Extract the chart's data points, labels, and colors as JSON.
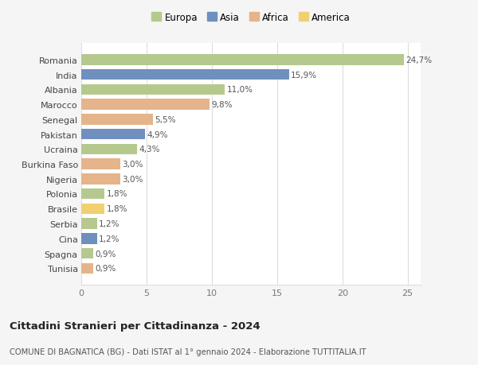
{
  "countries": [
    "Romania",
    "India",
    "Albania",
    "Marocco",
    "Senegal",
    "Pakistan",
    "Ucraina",
    "Burkina Faso",
    "Nigeria",
    "Polonia",
    "Brasile",
    "Serbia",
    "Cina",
    "Spagna",
    "Tunisia"
  ],
  "values": [
    24.7,
    15.9,
    11.0,
    9.8,
    5.5,
    4.9,
    4.3,
    3.0,
    3.0,
    1.8,
    1.8,
    1.2,
    1.2,
    0.9,
    0.9
  ],
  "labels": [
    "24,7%",
    "15,9%",
    "11,0%",
    "9,8%",
    "5,5%",
    "4,9%",
    "4,3%",
    "3,0%",
    "3,0%",
    "1,8%",
    "1,8%",
    "1,2%",
    "1,2%",
    "0,9%",
    "0,9%"
  ],
  "continents": [
    "Europa",
    "Asia",
    "Europa",
    "Africa",
    "Africa",
    "Asia",
    "Europa",
    "Africa",
    "Africa",
    "Europa",
    "America",
    "Europa",
    "Asia",
    "Europa",
    "Africa"
  ],
  "continent_colors": {
    "Europa": "#b5c98e",
    "Asia": "#6f8fbf",
    "Africa": "#e5b48a",
    "America": "#f0d070"
  },
  "legend_order": [
    "Europa",
    "Asia",
    "Africa",
    "America"
  ],
  "title": "Cittadini Stranieri per Cittadinanza - 2024",
  "subtitle": "COMUNE DI BAGNATICA (BG) - Dati ISTAT al 1° gennaio 2024 - Elaborazione TUTTITALIA.IT",
  "xlim": [
    0,
    26
  ],
  "xticks": [
    0,
    5,
    10,
    15,
    20,
    25
  ],
  "background_color": "#f5f5f5",
  "bar_background": "#ffffff",
  "grid_color": "#dddddd"
}
